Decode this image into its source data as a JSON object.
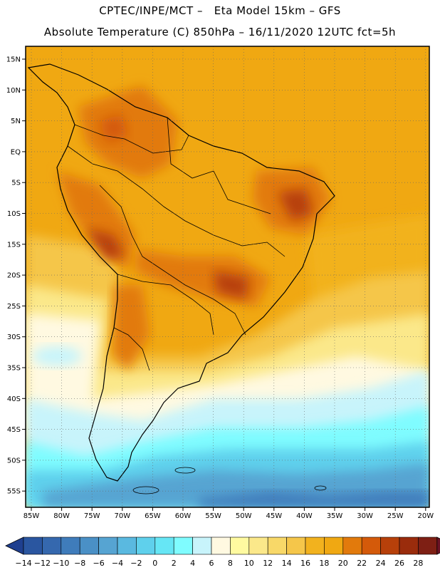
{
  "title": {
    "line1": "CPTEC/INPE/MCT –   Eta Model 15km – GFS",
    "line2": "Absolute Temperature (C) 850hPa – 16/11/2020 12UTC fct=5h"
  },
  "map": {
    "lat_labels": [
      "15N",
      "10N",
      "5N",
      "EQ",
      "5S",
      "10S",
      "15S",
      "20S",
      "25S",
      "30S",
      "35S",
      "40S",
      "45S",
      "50S",
      "55S"
    ],
    "lon_labels": [
      "85W",
      "80W",
      "75W",
      "70W",
      "65W",
      "60W",
      "55W",
      "50W",
      "45W",
      "40W",
      "35W",
      "30W",
      "25W",
      "20W"
    ]
  },
  "colorbar": {
    "labels": [
      "-14",
      "-12",
      "-10",
      "-8",
      "-6",
      "-4",
      "-2",
      "0",
      "2",
      "4",
      "6",
      "8",
      "10",
      "12",
      "14",
      "16",
      "18",
      "20",
      "22",
      "24",
      "26",
      "28"
    ],
    "colors": [
      "#1f3f8f",
      "#2a56a0",
      "#3568ae",
      "#3f7cbb",
      "#4a90c6",
      "#56a4d2",
      "#5ab9e0",
      "#5fd0ec",
      "#66e6f5",
      "#7ffcff",
      "#c8f4fb",
      "#fff9e1",
      "#fffaa0",
      "#fbe88a",
      "#f8d868",
      "#f5c64a",
      "#f2b21e",
      "#f0a812",
      "#e27a0c",
      "#d45a0a",
      "#b7400a",
      "#9a2c0c",
      "#7e1f14",
      "#6a1224"
    ]
  }
}
